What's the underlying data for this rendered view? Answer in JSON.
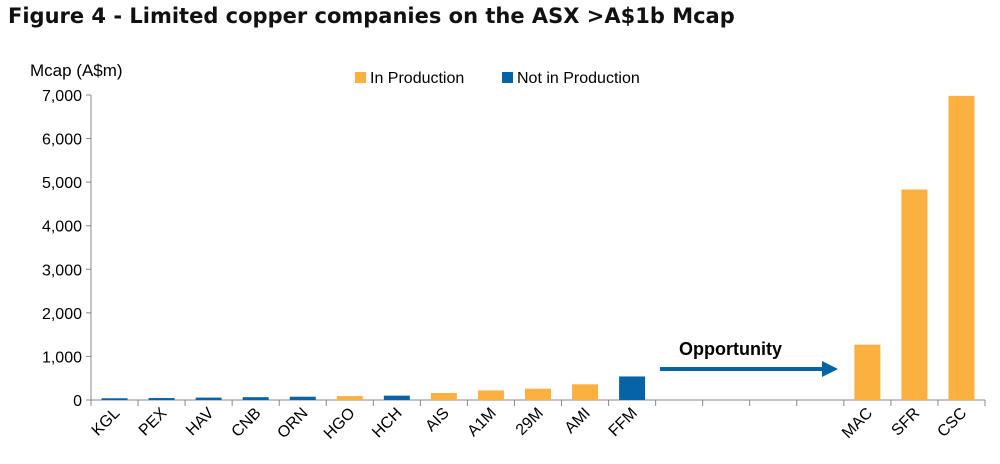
{
  "figure_title": "Figure 4 - Limited copper companies on the ASX >A$1b Mcap",
  "chart_data": {
    "type": "bar",
    "title": "Figure 4 - Limited copper companies on the ASX >A$1b Mcap",
    "ylabel": "Mcap (A$m)",
    "xlabel": "",
    "ylim": [
      0,
      7000
    ],
    "yticks": [
      "0",
      "1,000",
      "2,000",
      "3,000",
      "4,000",
      "5,000",
      "6,000",
      "7,000"
    ],
    "ytick_values": [
      0,
      1000,
      2000,
      3000,
      4000,
      5000,
      6000,
      7000
    ],
    "categories": [
      "KGL",
      "PEX",
      "HAV",
      "CNB",
      "ORN",
      "HGO",
      "HCH",
      "AIS",
      "A1M",
      "29M",
      "AMI",
      "FFM",
      "",
      "",
      "",
      "",
      "MAC",
      "SFR",
      "CSC"
    ],
    "values": [
      40,
      45,
      55,
      65,
      75,
      90,
      100,
      160,
      220,
      260,
      360,
      540,
      null,
      null,
      null,
      null,
      1270,
      4830,
      6980
    ],
    "status": [
      "Not in Production",
      "Not in Production",
      "Not in Production",
      "Not in Production",
      "Not in Production",
      "In Production",
      "Not in Production",
      "In Production",
      "In Production",
      "In Production",
      "In Production",
      "Not in Production",
      "",
      "",
      "",
      "",
      "In Production",
      "In Production",
      "In Production"
    ],
    "legend": {
      "position": "top",
      "entries": [
        {
          "name": "In Production",
          "color": "#FBB040"
        },
        {
          "name": "Not in Production",
          "color": "#0563A6"
        }
      ]
    },
    "annotation": {
      "text": "Opportunity",
      "arrow_color": "#0563A6"
    },
    "grid": false
  }
}
